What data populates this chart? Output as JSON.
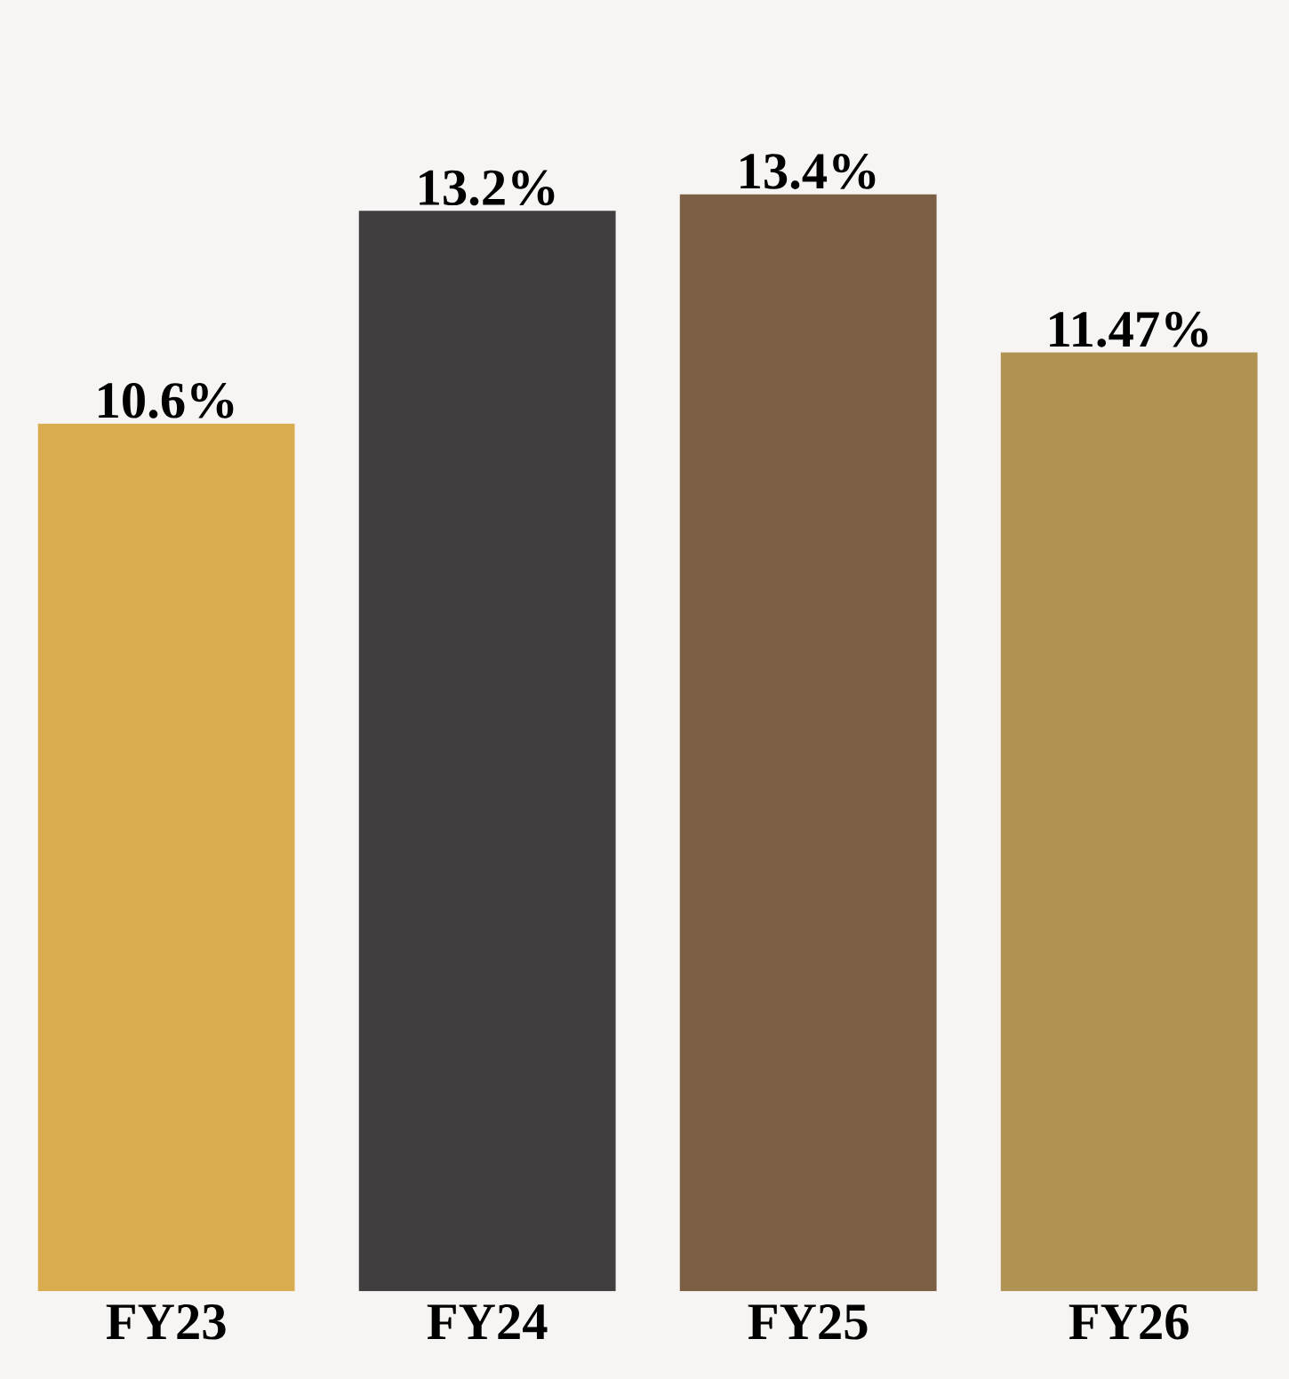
{
  "chart_data": {
    "type": "bar",
    "categories": [
      "FY23",
      "FY24",
      "FY25",
      "FY26"
    ],
    "values": [
      10.6,
      13.2,
      13.4,
      11.47
    ],
    "value_labels": [
      "10.6%",
      "13.2%",
      "13.4%",
      "11.47%"
    ],
    "colors": [
      "#d9ac50",
      "#403e3f",
      "#7b5f45",
      "#b09253"
    ]
  }
}
